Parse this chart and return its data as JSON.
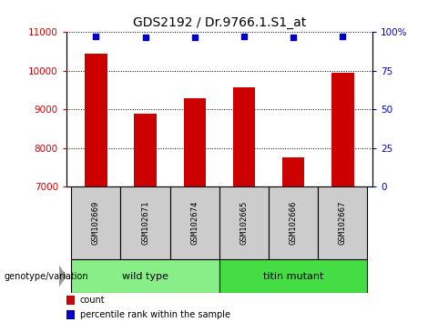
{
  "title": "GDS2192 / Dr.9766.1.S1_at",
  "samples": [
    "GSM102669",
    "GSM102671",
    "GSM102674",
    "GSM102665",
    "GSM102666",
    "GSM102667"
  ],
  "counts": [
    10450,
    8900,
    9280,
    9580,
    7770,
    9950
  ],
  "percentile_ranks": [
    97.5,
    96.5,
    96.5,
    97.5,
    96.5,
    97.5
  ],
  "ylim_left": [
    7000,
    11000
  ],
  "ylim_right": [
    0,
    100
  ],
  "yticks_left": [
    7000,
    8000,
    9000,
    10000,
    11000
  ],
  "yticks_right": [
    0,
    25,
    50,
    75,
    100
  ],
  "bar_color": "#cc0000",
  "dot_color": "#0000cc",
  "bar_bottom": 7000,
  "groups": [
    {
      "label": "wild type",
      "color": "#88ee88"
    },
    {
      "label": "titin mutant",
      "color": "#44dd44"
    }
  ],
  "group_label": "genotype/variation",
  "legend_count_color": "#cc0000",
  "legend_dot_color": "#0000cc",
  "legend_count_label": "count",
  "legend_percentile_label": "percentile rank within the sample",
  "background_color": "#ffffff",
  "tick_area_color": "#cccccc",
  "title_fontsize": 10,
  "tick_fontsize": 7.5,
  "label_fontsize": 6.5,
  "group_fontsize": 8
}
